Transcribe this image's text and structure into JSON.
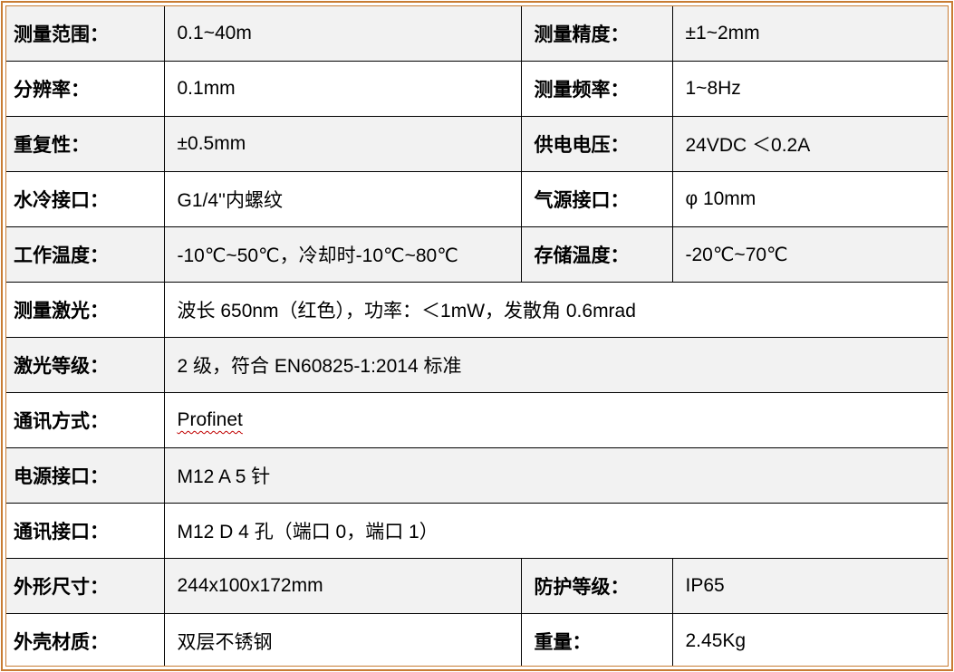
{
  "doc": {
    "type": "product-specification-table",
    "accent_border_color": "#c87c33",
    "grid_color": "#000000",
    "shade_color": "#f2f2f2",
    "spellcheck_color": "#c00000"
  },
  "rows": [
    {
      "label1": "测量范围：",
      "value1": "0.1~40m",
      "label2": "测量精度：",
      "value2": "±1~2mm"
    },
    {
      "label1": "分辨率：",
      "value1": "0.1mm",
      "label2": "测量频率：",
      "value2": "1~8Hz"
    },
    {
      "label1": "重复性：",
      "value1": "±0.5mm",
      "label2": "供电电压：",
      "value2": "24VDC ＜0.2A"
    },
    {
      "label1": "水冷接口：",
      "value1": "G1/4''内螺纹",
      "label2": "气源接口：",
      "value2": "φ 10mm"
    },
    {
      "label1": "工作温度：",
      "value1": "-10℃~50℃，冷却时-10℃~80℃",
      "label2": "存储温度：",
      "value2": "-20℃~70℃"
    },
    {
      "label1": "测量激光：",
      "value1": "波长 650nm（红色），功率：＜1mW，发散角 0.6mrad"
    },
    {
      "label1": "激光等级：",
      "value1": "2 级，符合 EN60825-1:2014 标准"
    },
    {
      "label1": "通讯方式：",
      "value1": "Profinet"
    },
    {
      "label1": "电源接口：",
      "value1": "M12 A 5 针"
    },
    {
      "label1": "通讯接口：",
      "value1": "M12 D 4 孔（端口 0，端口 1）"
    },
    {
      "label1": "外形尺寸：",
      "value1": "244x100x172mm",
      "label2": "防护等级：",
      "value2": "IP65"
    },
    {
      "label1": "外壳材质：",
      "value1": "双层不锈钢",
      "label2": "重量：",
      "value2": "2.45Kg"
    }
  ]
}
